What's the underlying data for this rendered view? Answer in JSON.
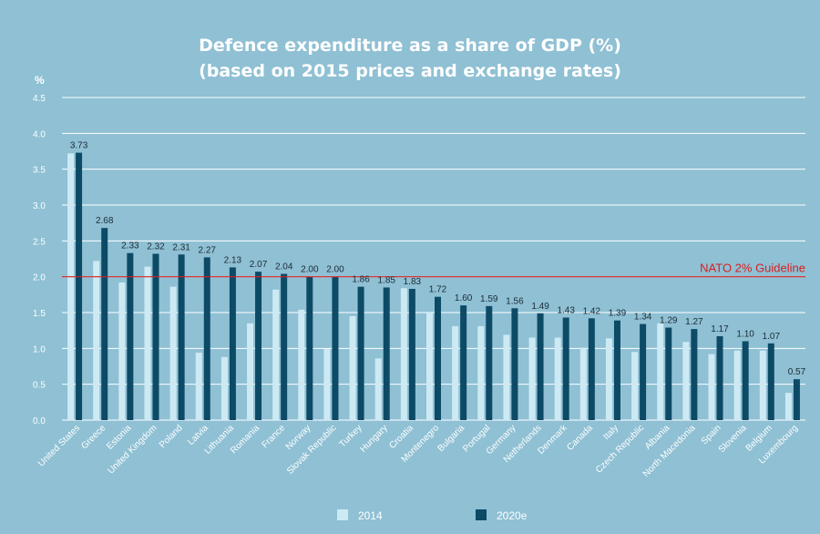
{
  "chart_data": {
    "type": "bar",
    "title_line1": "Defence expenditure as a share of GDP (%)",
    "title_line2": "(based on 2015 prices and exchange rates)",
    "ylabel": "%",
    "ylim": [
      0,
      4.5
    ],
    "yticks": [
      "0.0",
      "0.5",
      "1.0",
      "1.5",
      "2.0",
      "2.5",
      "3.0",
      "3.5",
      "4.0",
      "4.5"
    ],
    "categories": [
      "United States",
      "Greece",
      "Estonia",
      "United Kingdom",
      "Poland",
      "Latvia",
      "Lithuania",
      "Romania",
      "France",
      "Norway",
      "Slovak Republic",
      "Turkey",
      "Hungary",
      "Croatia",
      "Montenegro",
      "Bulgaria",
      "Portugal",
      "Germany",
      "Netherlands",
      "Denmark",
      "Canada",
      "Italy",
      "Czech Republic",
      "Albania",
      "North Macedonia",
      "Spain",
      "Slovenia",
      "Belgium",
      "Luxembourg"
    ],
    "series": [
      {
        "name": "2014",
        "color": "#cdeaf4",
        "values": [
          3.72,
          2.22,
          1.92,
          2.14,
          1.86,
          0.94,
          0.88,
          1.35,
          1.82,
          1.54,
          0.99,
          1.45,
          0.86,
          1.84,
          1.5,
          1.31,
          1.31,
          1.19,
          1.15,
          1.15,
          1.01,
          1.14,
          0.95,
          1.35,
          1.09,
          0.92,
          0.97,
          0.97,
          0.38
        ]
      },
      {
        "name": "2020e",
        "color": "#0c4a66",
        "values": [
          3.73,
          2.68,
          2.33,
          2.32,
          2.31,
          2.27,
          2.13,
          2.07,
          2.04,
          2.0,
          2.0,
          1.86,
          1.85,
          1.83,
          1.72,
          1.6,
          1.59,
          1.56,
          1.49,
          1.43,
          1.42,
          1.39,
          1.34,
          1.29,
          1.27,
          1.17,
          1.1,
          1.07,
          0.57
        ]
      }
    ],
    "data_labels": [
      "3.73",
      "2.68",
      "2.33",
      "2.32",
      "2.31",
      "2.27",
      "2.13",
      "2.07",
      "2.04",
      "2.00",
      "2.00",
      "1.86",
      "1.85",
      "1.83",
      "1.72",
      "1.60",
      "1.59",
      "1.56",
      "1.49",
      "1.43",
      "1.42",
      "1.39",
      "1.34",
      "1.29",
      "1.27",
      "1.17",
      "1.10",
      "1.07",
      "0.57"
    ],
    "reference_line": {
      "value": 2.0,
      "label": "NATO 2% Guideline",
      "color": "#d62020"
    },
    "legend": [
      "2014",
      "2020e"
    ],
    "legend_position": "bottom-center"
  }
}
